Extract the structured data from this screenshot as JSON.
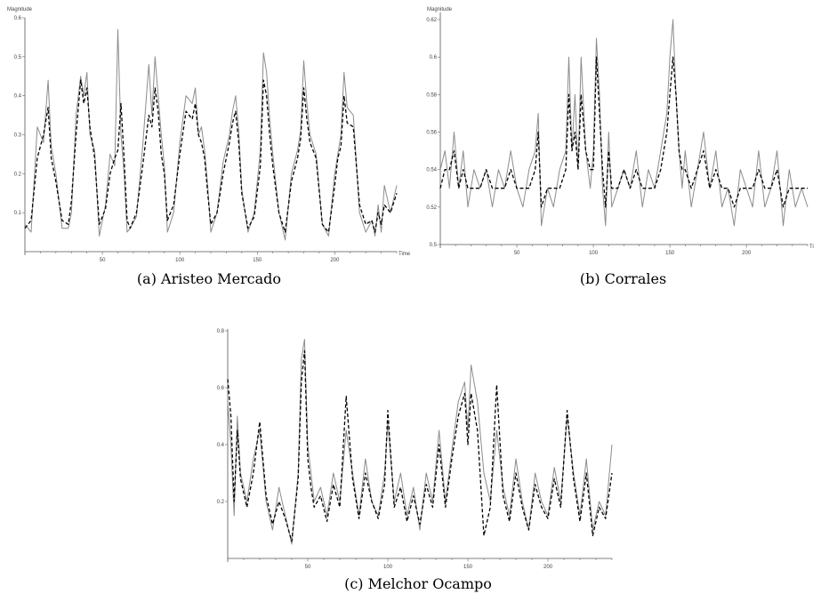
{
  "chart_data": [
    {
      "type": "line",
      "caption": "(a) Aristeo Mercado",
      "xlabel": "Time",
      "ylabel": "Magnitude",
      "xlim": [
        0,
        240
      ],
      "ylim": [
        0,
        0.6
      ],
      "xticks": [
        50,
        100,
        150,
        200
      ],
      "yticks": [
        0.1,
        0.2,
        0.3,
        0.4,
        0.5,
        0.6
      ],
      "series": [
        {
          "style": "solid",
          "color": "#8c8c8c",
          "x": [
            0,
            4,
            8,
            12,
            15,
            17,
            20,
            24,
            28,
            30,
            33,
            36,
            38,
            40,
            42,
            45,
            48,
            52,
            55,
            58,
            60,
            62,
            64,
            66,
            68,
            72,
            76,
            80,
            82,
            84,
            86,
            88,
            90,
            92,
            96,
            100,
            104,
            108,
            110,
            112,
            114,
            116,
            118,
            120,
            124,
            128,
            132,
            134,
            136,
            138,
            140,
            144,
            148,
            152,
            154,
            156,
            158,
            160,
            164,
            168,
            172,
            176,
            178,
            180,
            182,
            184,
            188,
            192,
            196,
            200,
            202,
            204,
            206,
            208,
            212,
            216,
            220,
            224,
            226,
            228,
            230,
            232,
            236,
            240
          ],
          "y": [
            0.07,
            0.05,
            0.32,
            0.28,
            0.44,
            0.27,
            0.2,
            0.06,
            0.06,
            0.1,
            0.35,
            0.45,
            0.4,
            0.46,
            0.3,
            0.26,
            0.04,
            0.12,
            0.25,
            0.22,
            0.57,
            0.3,
            0.2,
            0.05,
            0.06,
            0.09,
            0.27,
            0.48,
            0.35,
            0.5,
            0.4,
            0.3,
            0.22,
            0.05,
            0.1,
            0.28,
            0.4,
            0.38,
            0.42,
            0.3,
            0.32,
            0.26,
            0.17,
            0.05,
            0.1,
            0.23,
            0.3,
            0.36,
            0.4,
            0.31,
            0.16,
            0.05,
            0.1,
            0.26,
            0.51,
            0.46,
            0.34,
            0.25,
            0.1,
            0.03,
            0.2,
            0.26,
            0.31,
            0.49,
            0.38,
            0.3,
            0.25,
            0.07,
            0.04,
            0.2,
            0.25,
            0.3,
            0.46,
            0.37,
            0.35,
            0.1,
            0.05,
            0.08,
            0.04,
            0.12,
            0.05,
            0.17,
            0.1,
            0.17
          ]
        },
        {
          "style": "dashed",
          "color": "#000000",
          "x": [
            0,
            4,
            8,
            12,
            15,
            17,
            20,
            24,
            28,
            30,
            33,
            36,
            38,
            40,
            42,
            45,
            48,
            52,
            55,
            58,
            60,
            62,
            64,
            66,
            68,
            72,
            76,
            80,
            82,
            84,
            86,
            88,
            90,
            92,
            96,
            100,
            104,
            108,
            110,
            112,
            114,
            116,
            118,
            120,
            124,
            128,
            132,
            134,
            136,
            138,
            140,
            144,
            148,
            152,
            154,
            156,
            158,
            160,
            164,
            168,
            172,
            176,
            178,
            180,
            182,
            184,
            188,
            192,
            196,
            200,
            202,
            204,
            206,
            208,
            212,
            216,
            220,
            224,
            226,
            228,
            230,
            232,
            236,
            240
          ],
          "y": [
            0.06,
            0.08,
            0.24,
            0.3,
            0.37,
            0.24,
            0.18,
            0.08,
            0.07,
            0.13,
            0.3,
            0.44,
            0.38,
            0.42,
            0.32,
            0.24,
            0.07,
            0.11,
            0.2,
            0.24,
            0.26,
            0.38,
            0.24,
            0.08,
            0.06,
            0.1,
            0.22,
            0.35,
            0.32,
            0.42,
            0.36,
            0.25,
            0.2,
            0.08,
            0.12,
            0.25,
            0.36,
            0.34,
            0.38,
            0.3,
            0.28,
            0.24,
            0.15,
            0.07,
            0.1,
            0.2,
            0.28,
            0.33,
            0.36,
            0.28,
            0.15,
            0.06,
            0.09,
            0.22,
            0.44,
            0.4,
            0.3,
            0.22,
            0.1,
            0.05,
            0.18,
            0.24,
            0.29,
            0.42,
            0.34,
            0.28,
            0.24,
            0.07,
            0.05,
            0.17,
            0.24,
            0.27,
            0.4,
            0.33,
            0.32,
            0.12,
            0.07,
            0.08,
            0.05,
            0.1,
            0.07,
            0.12,
            0.1,
            0.15
          ]
        }
      ]
    },
    {
      "type": "line",
      "caption": "(b) Corrales",
      "xlabel": "Ti",
      "ylabel": "Magnitude",
      "xlim": [
        0,
        240
      ],
      "ylim": [
        0.5,
        0.62
      ],
      "xticks": [
        50,
        100,
        150,
        200
      ],
      "yticks": [
        0.5,
        0.52,
        0.54,
        0.56,
        0.58,
        0.6,
        0.62
      ],
      "series": [
        {
          "style": "solid",
          "color": "#8c8c8c",
          "x": [
            0,
            3,
            6,
            9,
            12,
            15,
            18,
            22,
            26,
            30,
            34,
            38,
            42,
            46,
            50,
            54,
            58,
            62,
            64,
            66,
            70,
            74,
            78,
            82,
            84,
            86,
            88,
            90,
            92,
            95,
            98,
            100,
            102,
            104,
            106,
            108,
            110,
            112,
            116,
            120,
            124,
            128,
            132,
            136,
            140,
            144,
            148,
            150,
            152,
            154,
            156,
            158,
            160,
            164,
            168,
            172,
            176,
            180,
            184,
            188,
            192,
            196,
            200,
            204,
            208,
            212,
            216,
            220,
            224,
            228,
            232,
            236,
            240
          ],
          "y": [
            0.54,
            0.55,
            0.53,
            0.56,
            0.53,
            0.55,
            0.52,
            0.54,
            0.53,
            0.54,
            0.52,
            0.54,
            0.53,
            0.55,
            0.53,
            0.52,
            0.54,
            0.55,
            0.57,
            0.51,
            0.53,
            0.52,
            0.54,
            0.55,
            0.6,
            0.55,
            0.58,
            0.54,
            0.6,
            0.55,
            0.53,
            0.55,
            0.61,
            0.58,
            0.53,
            0.51,
            0.56,
            0.52,
            0.53,
            0.54,
            0.53,
            0.55,
            0.52,
            0.54,
            0.53,
            0.55,
            0.57,
            0.6,
            0.62,
            0.58,
            0.55,
            0.53,
            0.55,
            0.52,
            0.54,
            0.56,
            0.53,
            0.55,
            0.52,
            0.53,
            0.51,
            0.54,
            0.53,
            0.52,
            0.55,
            0.52,
            0.53,
            0.55,
            0.51,
            0.54,
            0.52,
            0.53,
            0.52
          ]
        },
        {
          "style": "dashed",
          "color": "#000000",
          "x": [
            0,
            3,
            6,
            9,
            12,
            15,
            18,
            22,
            26,
            30,
            34,
            38,
            42,
            46,
            50,
            54,
            58,
            62,
            64,
            66,
            70,
            74,
            78,
            82,
            84,
            86,
            88,
            90,
            92,
            95,
            98,
            100,
            102,
            104,
            106,
            108,
            110,
            112,
            116,
            120,
            124,
            128,
            132,
            136,
            140,
            144,
            148,
            150,
            152,
            154,
            156,
            158,
            160,
            164,
            168,
            172,
            176,
            180,
            184,
            188,
            192,
            196,
            200,
            204,
            208,
            212,
            216,
            220,
            224,
            228,
            232,
            236,
            240
          ],
          "y": [
            0.53,
            0.54,
            0.54,
            0.55,
            0.53,
            0.54,
            0.53,
            0.53,
            0.53,
            0.54,
            0.53,
            0.53,
            0.53,
            0.54,
            0.53,
            0.53,
            0.53,
            0.54,
            0.56,
            0.52,
            0.53,
            0.53,
            0.53,
            0.54,
            0.58,
            0.55,
            0.56,
            0.54,
            0.58,
            0.55,
            0.54,
            0.54,
            0.6,
            0.57,
            0.54,
            0.52,
            0.55,
            0.53,
            0.53,
            0.54,
            0.53,
            0.54,
            0.53,
            0.53,
            0.53,
            0.54,
            0.56,
            0.58,
            0.6,
            0.58,
            0.55,
            0.54,
            0.54,
            0.53,
            0.54,
            0.55,
            0.53,
            0.54,
            0.53,
            0.53,
            0.52,
            0.53,
            0.53,
            0.53,
            0.54,
            0.53,
            0.53,
            0.54,
            0.52,
            0.53,
            0.53,
            0.53,
            0.53
          ]
        }
      ]
    },
    {
      "type": "line",
      "caption": "(c) Melchor Ocampo",
      "xlabel": "",
      "ylabel": "",
      "xlim": [
        0,
        240
      ],
      "ylim": [
        0,
        0.8
      ],
      "xticks": [
        50,
        100,
        150,
        200
      ],
      "yticks": [
        0.2,
        0.4,
        0.6,
        0.8
      ],
      "series": [
        {
          "style": "solid",
          "color": "#8c8c8c",
          "x": [
            0,
            2,
            4,
            6,
            8,
            12,
            16,
            20,
            24,
            28,
            32,
            36,
            40,
            44,
            46,
            48,
            50,
            52,
            54,
            58,
            62,
            66,
            70,
            74,
            78,
            82,
            86,
            90,
            94,
            98,
            100,
            104,
            108,
            112,
            116,
            120,
            124,
            128,
            132,
            136,
            140,
            144,
            148,
            150,
            152,
            156,
            160,
            164,
            168,
            172,
            176,
            180,
            184,
            188,
            192,
            196,
            200,
            204,
            208,
            212,
            216,
            220,
            224,
            228,
            232,
            236,
            240
          ],
          "y": [
            0.55,
            0.4,
            0.15,
            0.5,
            0.3,
            0.2,
            0.35,
            0.45,
            0.2,
            0.1,
            0.25,
            0.15,
            0.05,
            0.3,
            0.7,
            0.77,
            0.4,
            0.3,
            0.2,
            0.25,
            0.15,
            0.3,
            0.2,
            0.45,
            0.3,
            0.15,
            0.35,
            0.2,
            0.15,
            0.3,
            0.48,
            0.2,
            0.3,
            0.15,
            0.25,
            0.1,
            0.3,
            0.2,
            0.45,
            0.2,
            0.38,
            0.55,
            0.62,
            0.45,
            0.68,
            0.55,
            0.3,
            0.2,
            0.45,
            0.25,
            0.15,
            0.35,
            0.2,
            0.1,
            0.3,
            0.2,
            0.15,
            0.32,
            0.2,
            0.5,
            0.3,
            0.15,
            0.35,
            0.1,
            0.2,
            0.15,
            0.4
          ]
        },
        {
          "style": "dashed",
          "color": "#000000",
          "x": [
            0,
            2,
            4,
            6,
            8,
            12,
            16,
            20,
            24,
            28,
            32,
            36,
            40,
            44,
            46,
            48,
            50,
            52,
            54,
            58,
            62,
            66,
            70,
            74,
            78,
            82,
            86,
            90,
            94,
            98,
            100,
            104,
            108,
            112,
            116,
            120,
            124,
            128,
            132,
            136,
            140,
            144,
            148,
            150,
            152,
            156,
            160,
            164,
            168,
            172,
            176,
            180,
            184,
            188,
            192,
            196,
            200,
            204,
            208,
            212,
            216,
            220,
            224,
            228,
            232,
            236,
            240
          ],
          "y": [
            0.63,
            0.5,
            0.2,
            0.45,
            0.28,
            0.18,
            0.3,
            0.48,
            0.22,
            0.12,
            0.2,
            0.14,
            0.06,
            0.28,
            0.62,
            0.73,
            0.35,
            0.25,
            0.18,
            0.22,
            0.13,
            0.26,
            0.18,
            0.57,
            0.28,
            0.14,
            0.3,
            0.2,
            0.14,
            0.26,
            0.52,
            0.18,
            0.25,
            0.13,
            0.22,
            0.12,
            0.26,
            0.18,
            0.4,
            0.18,
            0.35,
            0.5,
            0.58,
            0.4,
            0.58,
            0.45,
            0.08,
            0.18,
            0.61,
            0.22,
            0.13,
            0.3,
            0.18,
            0.1,
            0.26,
            0.18,
            0.14,
            0.28,
            0.18,
            0.52,
            0.28,
            0.13,
            0.3,
            0.08,
            0.18,
            0.14,
            0.3
          ]
        }
      ]
    }
  ]
}
